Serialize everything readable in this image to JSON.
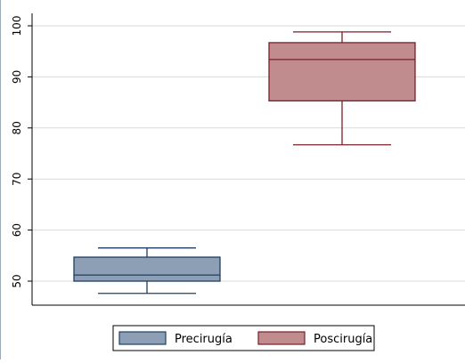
{
  "chart_data": {
    "type": "box",
    "title": "",
    "xlabel": "",
    "ylabel": "",
    "ylim": [
      45,
      102
    ],
    "yticks": [
      50,
      60,
      70,
      80,
      90,
      100
    ],
    "grid": true,
    "legend_position": "bottom",
    "series": [
      {
        "name": "Precirugía",
        "color": "#8c9fb4",
        "edge_color": "#1f3f5f",
        "whisker_low": 47.6,
        "q1": 50.0,
        "median": 51.2,
        "q3": 54.7,
        "whisker_high": 56.5
      },
      {
        "name": "Poscirugía",
        "color": "#c08c8e",
        "edge_color": "#7a1f28",
        "whisker_low": 76.7,
        "q1": 85.3,
        "median": 93.4,
        "q3": 96.7,
        "whisker_high": 98.8
      }
    ]
  }
}
